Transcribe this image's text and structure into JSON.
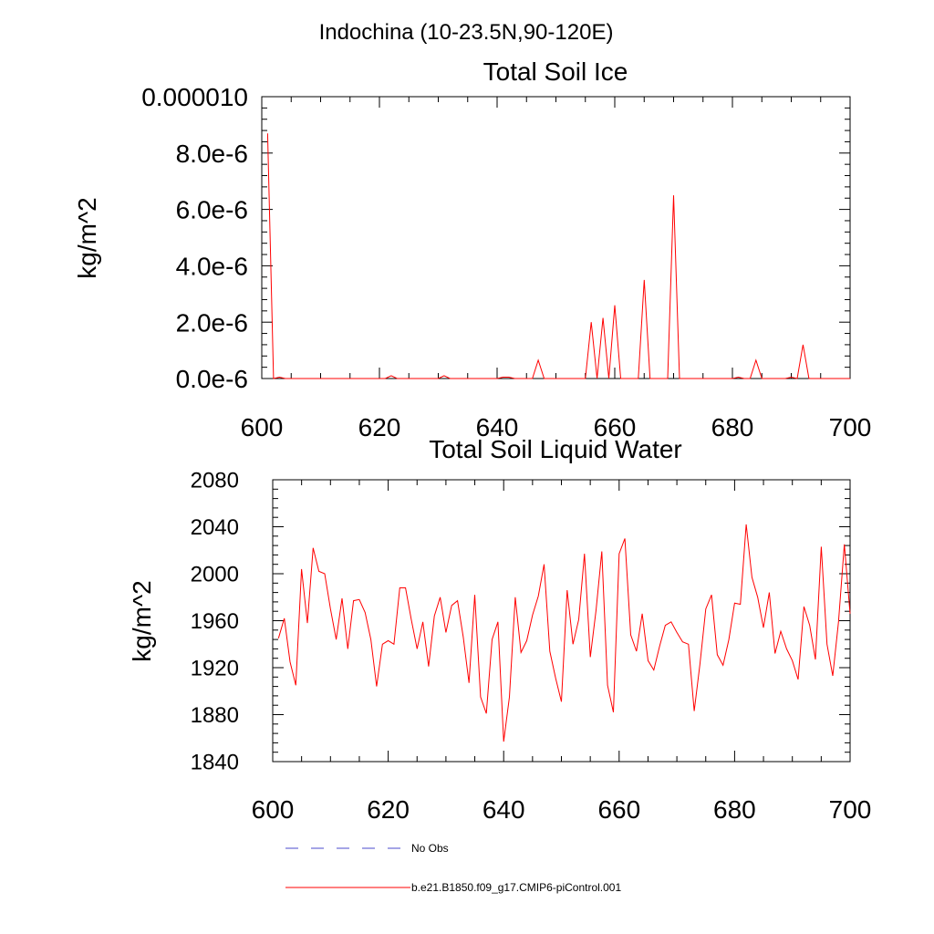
{
  "suptitle": "Indochina (10-23.5N,90-120E)",
  "chart_data": [
    {
      "type": "line",
      "title": "Total Soil Ice",
      "ylabel": "kg/m^2",
      "xlabel": "",
      "xlim": [
        600,
        700
      ],
      "ylim": [
        0,
        1e-05
      ],
      "x_ticks": [
        600,
        620,
        640,
        660,
        680,
        700
      ],
      "x_tick_labels": [
        "600",
        "620",
        "640",
        "660",
        "680",
        "700"
      ],
      "y_ticks": [
        0,
        2e-06,
        4e-06,
        6e-06,
        8e-06,
        1e-05
      ],
      "y_tick_labels": [
        "0.0e-6",
        "2.0e-6",
        "4.0e-6",
        "6.0e-6",
        "8.0e-6",
        "0.000010"
      ],
      "x": [
        601,
        602,
        603,
        604,
        605,
        606,
        607,
        608,
        609,
        610,
        611,
        612,
        613,
        614,
        615,
        616,
        617,
        618,
        619,
        620,
        621,
        622,
        623,
        624,
        625,
        626,
        627,
        628,
        629,
        630,
        631,
        632,
        633,
        634,
        635,
        636,
        637,
        638,
        639,
        640,
        641,
        642,
        643,
        644,
        645,
        646,
        647,
        648,
        649,
        650,
        651,
        652,
        653,
        654,
        655,
        656,
        657,
        658,
        659,
        660,
        661,
        662,
        663,
        664,
        665,
        666,
        667,
        668,
        669,
        670,
        671,
        672,
        673,
        674,
        675,
        676,
        677,
        678,
        679,
        680,
        681,
        682,
        683,
        684,
        685,
        686,
        687,
        688,
        689,
        690,
        691,
        692,
        693,
        694,
        695,
        696,
        697,
        698,
        699,
        700
      ],
      "series": [
        {
          "color": "#ff0000",
          "values": [
            8.7e-06,
            0,
            5e-08,
            0,
            0,
            0,
            0,
            0,
            0,
            0,
            0,
            0,
            0,
            0,
            0,
            0,
            0,
            0,
            0,
            0,
            0,
            1e-07,
            0,
            0,
            0,
            0,
            0,
            0,
            0,
            0,
            1e-07,
            0,
            0,
            0,
            0,
            0,
            0,
            0,
            0,
            0,
            5e-08,
            5e-08,
            0,
            0,
            0,
            0,
            6.5e-07,
            0,
            0,
            0,
            0,
            0,
            0,
            0,
            0,
            2e-06,
            0,
            2.15e-06,
            0,
            2.6e-06,
            0,
            0,
            0,
            0,
            3.5e-06,
            0,
            0,
            0,
            0,
            6.5e-06,
            0,
            0,
            0,
            0,
            0,
            0,
            0,
            0,
            0,
            0,
            5e-08,
            0,
            0,
            6.5e-07,
            0,
            0,
            0,
            0,
            0,
            5e-08,
            0,
            1.2e-06,
            0,
            0,
            0,
            0,
            0,
            0,
            0,
            0
          ]
        }
      ]
    },
    {
      "type": "line",
      "title": "Total Soil Liquid Water",
      "ylabel": "kg/m^2",
      "xlabel": "",
      "xlim": [
        600,
        700
      ],
      "ylim": [
        1840,
        2080
      ],
      "x_ticks": [
        600,
        620,
        640,
        660,
        680,
        700
      ],
      "x_tick_labels": [
        "600",
        "620",
        "640",
        "660",
        "680",
        "700"
      ],
      "y_ticks": [
        1840,
        1880,
        1920,
        1960,
        2000,
        2040,
        2080
      ],
      "y_tick_labels": [
        "1840",
        "1880",
        "1920",
        "1960",
        "2000",
        "2040",
        "2080"
      ],
      "x": [
        601,
        602,
        603,
        604,
        605,
        606,
        607,
        608,
        609,
        610,
        611,
        612,
        613,
        614,
        615,
        616,
        617,
        618,
        619,
        620,
        621,
        622,
        623,
        624,
        625,
        626,
        627,
        628,
        629,
        630,
        631,
        632,
        633,
        634,
        635,
        636,
        637,
        638,
        639,
        640,
        641,
        642,
        643,
        644,
        645,
        646,
        647,
        648,
        649,
        650,
        651,
        652,
        653,
        654,
        655,
        656,
        657,
        658,
        659,
        660,
        661,
        662,
        663,
        664,
        665,
        666,
        667,
        668,
        669,
        670,
        671,
        672,
        673,
        674,
        675,
        676,
        677,
        678,
        679,
        680,
        681,
        682,
        683,
        684,
        685,
        686,
        687,
        688,
        689,
        690,
        691,
        692,
        693,
        694,
        695,
        696,
        697,
        698,
        699,
        700
      ],
      "series": [
        {
          "color": "#ff0000",
          "values": [
            1945,
            1962,
            1925,
            1905,
            2004,
            1958,
            2022,
            2002,
            2000,
            1970,
            1944,
            1979,
            1936,
            1977,
            1978,
            1967,
            1944,
            1904,
            1940,
            1943,
            1940,
            1988,
            1988,
            1961,
            1936,
            1959,
            1921,
            1964,
            1980,
            1950,
            1973,
            1977,
            1946,
            1907,
            1982,
            1895,
            1881,
            1944,
            1959,
            1857,
            1895,
            1980,
            1933,
            1943,
            1965,
            1981,
            2008,
            1934,
            1911,
            1891,
            1986,
            1940,
            1961,
            2017,
            1929,
            1969,
            2019,
            1905,
            1882,
            2017,
            2030,
            1948,
            1934,
            1966,
            1926,
            1918,
            1938,
            1956,
            1959,
            1950,
            1942,
            1940,
            1883,
            1923,
            1970,
            1982,
            1931,
            1922,
            1944,
            1975,
            1974,
            2042,
            1997,
            1980,
            1954,
            1984,
            1932,
            1951,
            1936,
            1926,
            1910,
            1972,
            1956,
            1927,
            2023,
            1940,
            1913,
            1959,
            2025,
            1966
          ]
        }
      ]
    }
  ],
  "legend": [
    {
      "label": "No Obs",
      "color": "#4b4bcc",
      "dash": "dashed"
    },
    {
      "label": "b.e21.B1850.f09_g17.CMIP6-piControl.001",
      "color": "#ff0000",
      "dash": "solid"
    }
  ]
}
